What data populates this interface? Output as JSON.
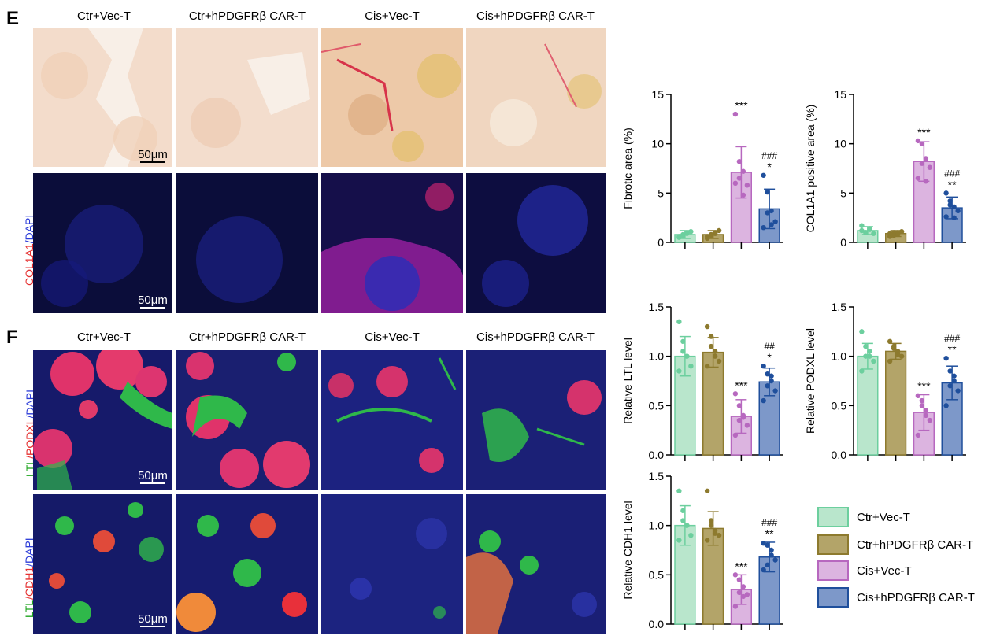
{
  "panels": {
    "E": {
      "letter": "E",
      "columns": [
        "Ctr+Vec-T",
        "Ctr+hPDGFRβ CAR-T",
        "Cis+Vec-T",
        "Cis+hPDGFRβ CAR-T"
      ],
      "row2_label_parts": [
        {
          "text": "COL1A1",
          "color": "#e53030"
        },
        {
          "text": "/DAPI",
          "color": "#2b3bd8"
        }
      ],
      "scalebar": "50μm"
    },
    "F": {
      "letter": "F",
      "columns": [
        "Ctr+Vec-T",
        "Ctr+hPDGFRβ CAR-T",
        "Cis+Vec-T",
        "Cis+hPDGFRβ CAR-T"
      ],
      "row1_label_parts": [
        {
          "text": "LTL",
          "color": "#1fa51f"
        },
        {
          "text": "/PODXL",
          "color": "#e53030"
        },
        {
          "text": "/DAPI",
          "color": "#2b3bd8"
        }
      ],
      "row2_label_parts": [
        {
          "text": "LTL",
          "color": "#1fa51f"
        },
        {
          "text": "/CDH1",
          "color": "#e53030"
        },
        {
          "text": "/DAPI",
          "color": "#2b3bd8"
        }
      ],
      "scalebar": "50μm"
    }
  },
  "groups": [
    {
      "name": "Ctr+Vec-T",
      "fill": "#b9e6cc",
      "stroke": "#6ccf9e",
      "dot": "#6ccf9e"
    },
    {
      "name": "Ctr+hPDGFRβ CAR-T",
      "fill": "#b3a469",
      "stroke": "#8d7a2e",
      "dot": "#8d7a2e"
    },
    {
      "name": "Cis+Vec-T",
      "fill": "#dcb4e0",
      "stroke": "#b768bf",
      "dot": "#b768bf"
    },
    {
      "name": "Cis+hPDGFRβ CAR-T",
      "fill": "#7d98c9",
      "stroke": "#1f4f9c",
      "dot": "#1f4f9c"
    }
  ],
  "chart_data": [
    {
      "type": "bar",
      "ylabel": "Fibrotic area (%)",
      "ylim": [
        0,
        15
      ],
      "yticks": [
        "0",
        "5",
        "10",
        "15"
      ],
      "tickvals": [
        0,
        5,
        10,
        15
      ],
      "series": [
        {
          "mean": 0.8,
          "sd": 0.4,
          "points": [
            0.5,
            0.7,
            0.9,
            1.1,
            0.6,
            0.8,
            1.0
          ],
          "sig": ""
        },
        {
          "mean": 0.8,
          "sd": 0.4,
          "points": [
            0.4,
            0.7,
            0.9,
            1.2,
            0.6,
            0.8,
            1.0
          ],
          "sig": ""
        },
        {
          "mean": 7.1,
          "sd": 2.6,
          "points": [
            13.0,
            6.5,
            7.2,
            5.8,
            6.0,
            8.2,
            4.8
          ],
          "sig": "***"
        },
        {
          "mean": 3.4,
          "sd": 2.0,
          "points": [
            6.8,
            5.1,
            3.2,
            2.1,
            1.5,
            3.0,
            1.8
          ],
          "sig": "*",
          "sig2": "###"
        }
      ]
    },
    {
      "type": "bar",
      "ylabel": "COL1A1 positive area (%)",
      "ylim": [
        0,
        15
      ],
      "yticks": [
        "0",
        "5",
        "10",
        "15"
      ],
      "tickvals": [
        0,
        5,
        10,
        15
      ],
      "series": [
        {
          "mean": 1.2,
          "sd": 0.4,
          "points": [
            1.7,
            1.0,
            1.4,
            0.9,
            1.2,
            1.0,
            1.3
          ],
          "sig": ""
        },
        {
          "mean": 0.9,
          "sd": 0.3,
          "points": [
            0.6,
            1.0,
            0.8,
            1.1,
            0.9,
            0.7,
            1.0
          ],
          "sig": ""
        },
        {
          "mean": 8.2,
          "sd": 2.0,
          "points": [
            10.3,
            10.0,
            8.5,
            7.6,
            6.5,
            8.0,
            6.2
          ],
          "sig": "***"
        },
        {
          "mean": 3.5,
          "sd": 1.1,
          "points": [
            5.0,
            4.2,
            3.6,
            3.2,
            2.6,
            3.8,
            2.5
          ],
          "sig": "**",
          "sig2": "###"
        }
      ]
    },
    {
      "type": "bar",
      "ylabel": "Relative LTL level",
      "ylim": [
        0,
        1.5
      ],
      "yticks": [
        "0.0",
        "0.5",
        "1.0",
        "1.5"
      ],
      "tickvals": [
        0,
        0.5,
        1.0,
        1.5
      ],
      "series": [
        {
          "mean": 1.0,
          "sd": 0.2,
          "points": [
            1.35,
            1.15,
            1.0,
            0.9,
            0.85,
            1.05,
            1.0
          ],
          "sig": ""
        },
        {
          "mean": 1.04,
          "sd": 0.15,
          "points": [
            1.3,
            1.2,
            1.05,
            0.95,
            0.9,
            1.1,
            1.0
          ],
          "sig": ""
        },
        {
          "mean": 0.39,
          "sd": 0.17,
          "points": [
            0.62,
            0.5,
            0.4,
            0.3,
            0.2,
            0.35,
            0.38
          ],
          "sig": "***"
        },
        {
          "mean": 0.74,
          "sd": 0.14,
          "points": [
            0.9,
            0.82,
            0.75,
            0.65,
            0.55,
            0.7,
            0.8
          ],
          "sig": "*",
          "sig2": "##"
        }
      ]
    },
    {
      "type": "bar",
      "ylabel": "Relative PODXL level",
      "ylim": [
        0,
        1.5
      ],
      "yticks": [
        "0.0",
        "0.5",
        "1.0",
        "1.5"
      ],
      "tickvals": [
        0,
        0.5,
        1.0,
        1.5
      ],
      "series": [
        {
          "mean": 1.0,
          "sd": 0.13,
          "points": [
            1.25,
            1.1,
            1.0,
            0.95,
            0.85,
            1.0,
            1.05
          ],
          "sig": ""
        },
        {
          "mean": 1.05,
          "sd": 0.08,
          "points": [
            1.15,
            1.1,
            1.05,
            1.0,
            0.95,
            1.08,
            1.02
          ],
          "sig": ""
        },
        {
          "mean": 0.43,
          "sd": 0.18,
          "points": [
            0.6,
            0.55,
            0.45,
            0.35,
            0.2,
            0.5,
            0.4
          ],
          "sig": "***"
        },
        {
          "mean": 0.73,
          "sd": 0.17,
          "points": [
            0.98,
            0.85,
            0.75,
            0.65,
            0.5,
            0.7,
            0.8
          ],
          "sig": "**",
          "sig2": "###"
        }
      ]
    },
    {
      "type": "bar",
      "ylabel": "Relative CDH1 level",
      "ylim": [
        0,
        1.5
      ],
      "yticks": [
        "0.0",
        "0.5",
        "1.0",
        "1.5"
      ],
      "tickvals": [
        0,
        0.5,
        1.0,
        1.5
      ],
      "series": [
        {
          "mean": 1.0,
          "sd": 0.2,
          "points": [
            1.35,
            1.15,
            1.0,
            0.9,
            0.85,
            1.05,
            1.0
          ],
          "sig": ""
        },
        {
          "mean": 0.97,
          "sd": 0.17,
          "points": [
            1.35,
            1.05,
            0.95,
            0.9,
            0.85,
            1.0,
            0.92
          ],
          "sig": ""
        },
        {
          "mean": 0.35,
          "sd": 0.15,
          "points": [
            0.5,
            0.45,
            0.38,
            0.3,
            0.18,
            0.32,
            0.28
          ],
          "sig": "***"
        },
        {
          "mean": 0.68,
          "sd": 0.15,
          "points": [
            0.82,
            0.8,
            0.7,
            0.65,
            0.55,
            0.6,
            0.75
          ],
          "sig": "**",
          "sig2": "###"
        }
      ]
    }
  ],
  "legend": [
    "Ctr+Vec-T",
    "Ctr+hPDGFRβ CAR-T",
    "Cis+Vec-T",
    "Cis+hPDGFRβ CAR-T"
  ]
}
